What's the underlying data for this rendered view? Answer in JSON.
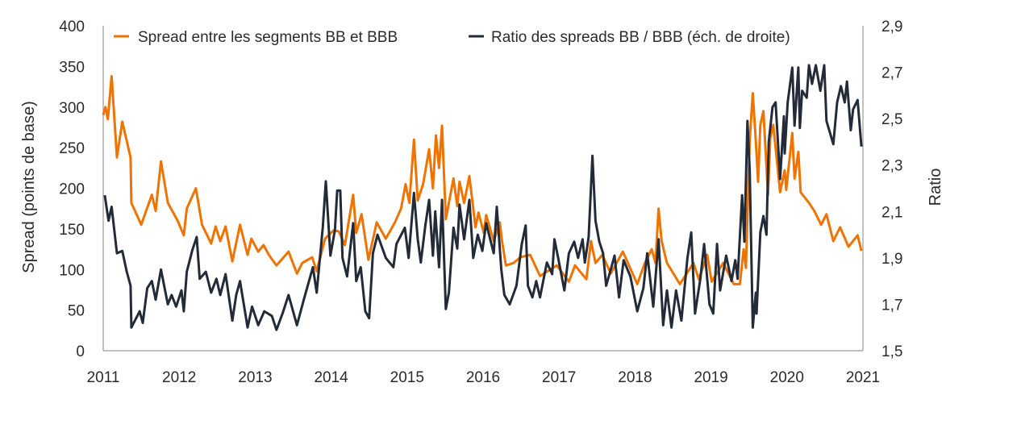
{
  "chart_data": {
    "type": "line",
    "title": "",
    "xlabel": "",
    "ylabel": "Spread (points de base)",
    "ylabel_right": "Ratio",
    "xlim": [
      2011,
      2021
    ],
    "ylim": [
      0,
      400
    ],
    "ylim_right": [
      1.5,
      2.9
    ],
    "x_ticks": [
      "2011",
      "2012",
      "2013",
      "2014",
      "2015",
      "2016",
      "2017",
      "2018",
      "2019",
      "2020",
      "2021"
    ],
    "y_ticks": [
      "0",
      "50",
      "100",
      "150",
      "200",
      "250",
      "300",
      "350",
      "400"
    ],
    "y_ticks_right": [
      "1,5",
      "1,7",
      "1,9",
      "2,1",
      "2,3",
      "2,5",
      "2,7",
      "2,9"
    ],
    "grid": false,
    "legend_position": "top",
    "colors": {
      "spread": "#f07300",
      "ratio": "#232a38",
      "axis": "#9a9a9a"
    },
    "series": [
      {
        "name": "Spread entre les segments BB et BBB",
        "axis": "left",
        "x": [
          2011.0,
          2011.03,
          2011.06,
          2011.11,
          2011.18,
          2011.25,
          2011.36,
          2011.37,
          2011.5,
          2011.64,
          2011.69,
          2011.76,
          2011.85,
          2011.98,
          2012.06,
          2012.1,
          2012.22,
          2012.3,
          2012.42,
          2012.48,
          2012.54,
          2012.61,
          2012.7,
          2012.8,
          2012.9,
          2012.95,
          2013.04,
          2013.11,
          2013.18,
          2013.28,
          2013.44,
          2013.55,
          2013.62,
          2013.75,
          2013.81,
          2013.92,
          2014.03,
          2014.1,
          2014.18,
          2014.29,
          2014.33,
          2014.4,
          2014.49,
          2014.6,
          2014.72,
          2014.84,
          2014.92,
          2014.98,
          2015.03,
          2015.09,
          2015.14,
          2015.21,
          2015.29,
          2015.34,
          2015.38,
          2015.42,
          2015.46,
          2015.51,
          2015.61,
          2015.66,
          2015.69,
          2015.75,
          2015.82,
          2015.9,
          2015.94,
          2016.01,
          2016.04,
          2016.14,
          2016.22,
          2016.25,
          2016.3,
          2016.4,
          2016.49,
          2016.62,
          2016.75,
          2016.97,
          2017.13,
          2017.21,
          2017.36,
          2017.42,
          2017.48,
          2017.57,
          2017.68,
          2017.84,
          2018.03,
          2018.13,
          2018.22,
          2018.27,
          2018.31,
          2018.35,
          2018.42,
          2018.59,
          2018.77,
          2018.84,
          2018.95,
          2019.01,
          2019.16,
          2019.3,
          2019.38,
          2019.43,
          2019.46,
          2019.51,
          2019.55,
          2019.59,
          2019.62,
          2019.65,
          2019.69,
          2019.75,
          2019.78,
          2019.82,
          2019.91,
          2019.97,
          2019.99,
          2020.07,
          2020.1,
          2020.15,
          2020.18,
          2020.29,
          2020.36,
          2020.45,
          2020.52,
          2020.61,
          2020.7,
          2020.81,
          2020.93,
          2020.98
        ],
        "y": [
          290,
          300,
          285,
          338,
          238,
          282,
          238,
          182,
          155,
          192,
          172,
          233,
          182,
          160,
          142,
          175,
          200,
          155,
          132,
          153,
          135,
          153,
          110,
          155,
          118,
          138,
          122,
          130,
          118,
          105,
          122,
          95,
          108,
          115,
          98,
          138,
          148,
          147,
          130,
          192,
          145,
          168,
          112,
          158,
          138,
          158,
          175,
          205,
          182,
          260,
          185,
          205,
          248,
          200,
          265,
          225,
          277,
          162,
          212,
          178,
          208,
          182,
          215,
          152,
          170,
          145,
          167,
          135,
          158,
          135,
          105,
          108,
          115,
          118,
          92,
          105,
          85,
          105,
          88,
          135,
          108,
          118,
          95,
          122,
          82,
          108,
          125,
          108,
          175,
          135,
          108,
          82,
          108,
          88,
          118,
          85,
          108,
          82,
          82,
          125,
          102,
          258,
          317,
          258,
          208,
          278,
          295,
          192,
          262,
          278,
          195,
          222,
          198,
          268,
          212,
          245,
          195,
          182,
          172,
          155,
          168,
          135,
          152,
          128,
          142,
          123
        ]
      },
      {
        "name": "Ratio des spreads BB / BBB (éch. de droite)",
        "axis": "right",
        "x": [
          2011.02,
          2011.07,
          2011.11,
          2011.18,
          2011.25,
          2011.31,
          2011.36,
          2011.37,
          2011.48,
          2011.52,
          2011.58,
          2011.64,
          2011.69,
          2011.76,
          2011.85,
          2011.9,
          2011.96,
          2012.03,
          2012.06,
          2012.1,
          2012.17,
          2012.23,
          2012.27,
          2012.35,
          2012.42,
          2012.49,
          2012.54,
          2012.61,
          2012.7,
          2012.75,
          2012.8,
          2012.9,
          2012.96,
          2013.04,
          2013.12,
          2013.22,
          2013.28,
          2013.36,
          2013.44,
          2013.55,
          2013.64,
          2013.76,
          2013.81,
          2013.89,
          2013.93,
          2013.99,
          2014.05,
          2014.08,
          2014.12,
          2014.15,
          2014.21,
          2014.29,
          2014.33,
          2014.39,
          2014.45,
          2014.5,
          2014.55,
          2014.61,
          2014.72,
          2014.82,
          2014.86,
          2014.97,
          2015.02,
          2015.09,
          2015.14,
          2015.18,
          2015.24,
          2015.29,
          2015.34,
          2015.37,
          2015.42,
          2015.46,
          2015.51,
          2015.55,
          2015.61,
          2015.66,
          2015.69,
          2015.75,
          2015.82,
          2015.87,
          2015.93,
          2015.99,
          2016.04,
          2016.14,
          2016.18,
          2016.24,
          2016.28,
          2016.35,
          2016.44,
          2016.51,
          2016.56,
          2016.59,
          2016.65,
          2016.7,
          2016.75,
          2016.84,
          2016.91,
          2016.94,
          2017.0,
          2017.07,
          2017.13,
          2017.2,
          2017.25,
          2017.31,
          2017.34,
          2017.39,
          2017.44,
          2017.48,
          2017.53,
          2017.58,
          2017.62,
          2017.68,
          2017.73,
          2017.79,
          2017.85,
          2017.94,
          2018.03,
          2018.11,
          2018.16,
          2018.24,
          2018.31,
          2018.37,
          2018.42,
          2018.48,
          2018.54,
          2018.61,
          2018.69,
          2018.74,
          2018.79,
          2018.86,
          2018.91,
          2018.98,
          2019.03,
          2019.08,
          2019.12,
          2019.2,
          2019.27,
          2019.32,
          2019.35,
          2019.41,
          2019.44,
          2019.48,
          2019.51,
          2019.55,
          2019.59,
          2019.6,
          2019.65,
          2019.69,
          2019.73,
          2019.76,
          2019.81,
          2019.85,
          2019.91,
          2019.96,
          2019.97,
          2020.01,
          2020.07,
          2020.1,
          2020.15,
          2020.17,
          2020.2,
          2020.26,
          2020.29,
          2020.33,
          2020.38,
          2020.44,
          2020.49,
          2020.52,
          2020.61,
          2020.66,
          2020.71,
          2020.76,
          2020.79,
          2020.84,
          2020.87,
          2020.93,
          2020.98
        ],
        "y": [
          2.17,
          2.06,
          2.12,
          1.92,
          1.93,
          1.84,
          1.78,
          1.6,
          1.67,
          1.62,
          1.77,
          1.8,
          1.72,
          1.85,
          1.7,
          1.74,
          1.69,
          1.76,
          1.67,
          1.84,
          1.93,
          1.99,
          1.81,
          1.84,
          1.75,
          1.81,
          1.74,
          1.83,
          1.63,
          1.74,
          1.8,
          1.6,
          1.69,
          1.61,
          1.67,
          1.65,
          1.59,
          1.66,
          1.74,
          1.61,
          1.72,
          1.86,
          1.75,
          2.03,
          2.23,
          1.91,
          2.02,
          2.19,
          2.19,
          1.9,
          1.82,
          2.05,
          1.8,
          1.86,
          1.67,
          1.64,
          1.92,
          2.0,
          1.9,
          1.86,
          1.96,
          2.03,
          1.9,
          2.18,
          1.98,
          1.88,
          2.04,
          2.15,
          1.91,
          2.1,
          1.86,
          2.15,
          1.68,
          1.75,
          2.03,
          1.94,
          2.13,
          1.98,
          2.15,
          1.9,
          2.0,
          1.93,
          2.05,
          1.92,
          2.12,
          1.85,
          1.74,
          1.7,
          1.78,
          1.96,
          2.04,
          1.78,
          1.73,
          1.8,
          1.73,
          1.88,
          1.83,
          1.98,
          1.88,
          1.76,
          1.92,
          1.97,
          1.9,
          1.98,
          1.88,
          1.99,
          2.34,
          2.06,
          1.97,
          1.92,
          1.78,
          1.85,
          1.91,
          1.73,
          1.89,
          1.82,
          1.67,
          1.77,
          1.92,
          1.69,
          1.98,
          1.61,
          1.76,
          1.6,
          1.76,
          1.63,
          1.9,
          2.01,
          1.66,
          1.81,
          1.96,
          1.7,
          1.66,
          1.96,
          1.76,
          1.91,
          1.8,
          1.89,
          1.81,
          2.17,
          1.97,
          2.49,
          2.28,
          1.6,
          1.75,
          1.66,
          2.01,
          2.08,
          2.0,
          2.4,
          2.55,
          2.57,
          2.24,
          2.51,
          2.35,
          2.57,
          2.72,
          2.47,
          2.72,
          2.46,
          2.62,
          2.59,
          2.73,
          2.65,
          2.73,
          2.62,
          2.73,
          2.49,
          2.39,
          2.57,
          2.64,
          2.57,
          2.66,
          2.45,
          2.54,
          2.58,
          2.38
        ]
      }
    ]
  }
}
